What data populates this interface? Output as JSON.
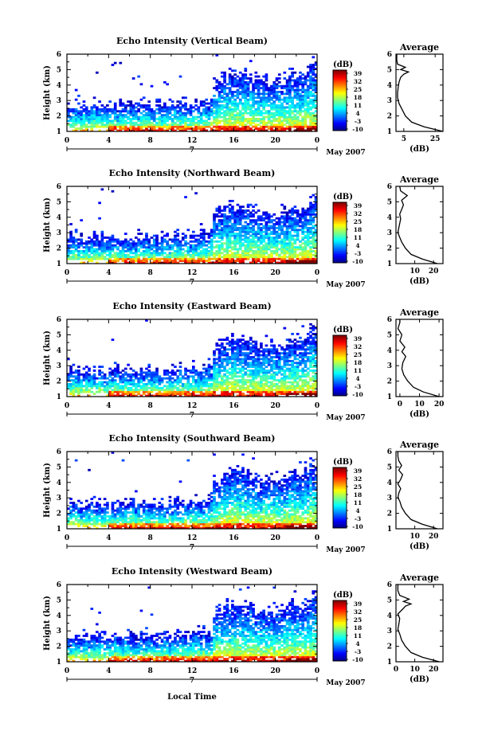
{
  "figure": {
    "month_label": "May 2007",
    "day_label": "7",
    "xlabel_bottom": "Local Time",
    "colorbar_unit": "(dB)",
    "colorbar_ticks": [
      "39",
      "32",
      "25",
      "18",
      "11",
      "4",
      "-3",
      "-10"
    ],
    "avg_title": "Average",
    "avg_xlabel": "(dB)"
  },
  "chart_data": [
    {
      "type": "heatmap",
      "title": "Echo Intensity (Vertical Beam)",
      "ylabel": "Height (km)",
      "x_ticks": [
        "0",
        "4",
        "8",
        "12",
        "16",
        "20",
        "0"
      ],
      "y_ticks": [
        "1",
        "2",
        "3",
        "4",
        "5",
        "6"
      ],
      "xlim": [
        0,
        24
      ],
      "ylim": [
        1,
        6
      ],
      "clim": [
        -10,
        39
      ],
      "seed": 11,
      "avg": {
        "title": "Average",
        "xlabel": "(dB)",
        "xlim": [
          0,
          30
        ],
        "x_ticks": [
          "5",
          "25"
        ],
        "profile": [
          [
            1.0,
            30
          ],
          [
            1.3,
            18
          ],
          [
            1.6,
            10
          ],
          [
            2.0,
            6
          ],
          [
            2.4,
            4
          ],
          [
            2.8,
            2
          ],
          [
            3.2,
            1
          ],
          [
            3.5,
            1
          ],
          [
            3.9,
            1.5
          ],
          [
            4.2,
            2
          ],
          [
            4.5,
            3
          ],
          [
            4.7,
            5
          ],
          [
            4.85,
            8
          ],
          [
            5.0,
            3
          ],
          [
            5.15,
            6
          ],
          [
            5.35,
            1
          ],
          [
            5.6,
            0.5
          ],
          [
            6.0,
            0.5
          ]
        ]
      }
    },
    {
      "type": "heatmap",
      "title": "Echo Intensity (Northward Beam)",
      "ylabel": "Height (km)",
      "x_ticks": [
        "0",
        "4",
        "8",
        "12",
        "16",
        "20",
        "0"
      ],
      "y_ticks": [
        "1",
        "2",
        "3",
        "4",
        "5",
        "6"
      ],
      "xlim": [
        0,
        24
      ],
      "ylim": [
        1,
        6
      ],
      "clim": [
        -10,
        39
      ],
      "seed": 23,
      "avg": {
        "title": "Average",
        "xlabel": "(dB)",
        "xlim": [
          0,
          25
        ],
        "x_ticks": [
          "10",
          "20"
        ],
        "profile": [
          [
            1.0,
            22
          ],
          [
            1.3,
            14
          ],
          [
            1.6,
            8
          ],
          [
            2.0,
            5
          ],
          [
            2.4,
            3
          ],
          [
            2.7,
            2
          ],
          [
            3.0,
            1
          ],
          [
            3.3,
            1.5
          ],
          [
            3.6,
            2
          ],
          [
            3.9,
            2.5
          ],
          [
            4.2,
            2
          ],
          [
            4.5,
            3
          ],
          [
            4.8,
            4
          ],
          [
            5.1,
            3
          ],
          [
            5.4,
            6
          ],
          [
            5.7,
            2.5
          ],
          [
            6.0,
            2
          ]
        ]
      }
    },
    {
      "type": "heatmap",
      "title": "Echo Intensity (Eastward Beam)",
      "ylabel": "Height (km)",
      "x_ticks": [
        "0",
        "4",
        "8",
        "12",
        "16",
        "20",
        "0"
      ],
      "y_ticks": [
        "1",
        "2",
        "3",
        "4",
        "5",
        "6"
      ],
      "xlim": [
        0,
        24
      ],
      "ylim": [
        1,
        6
      ],
      "clim": [
        -10,
        39
      ],
      "seed": 37,
      "avg": {
        "title": "Average",
        "xlabel": "(dB)",
        "xlim": [
          -2,
          22
        ],
        "x_ticks": [
          "0",
          "10",
          "20"
        ],
        "profile": [
          [
            1.0,
            20
          ],
          [
            1.3,
            12
          ],
          [
            1.6,
            7
          ],
          [
            2.0,
            4
          ],
          [
            2.4,
            2
          ],
          [
            2.8,
            1
          ],
          [
            3.2,
            1.5
          ],
          [
            3.6,
            3
          ],
          [
            3.9,
            1
          ],
          [
            4.2,
            2.5
          ],
          [
            4.6,
            0
          ],
          [
            5.0,
            1
          ],
          [
            5.4,
            -1
          ],
          [
            5.8,
            0
          ],
          [
            6.0,
            0
          ]
        ]
      }
    },
    {
      "type": "heatmap",
      "title": "Echo Intensity (Southward Beam)",
      "ylabel": "Height (km)",
      "x_ticks": [
        "0",
        "4",
        "8",
        "12",
        "16",
        "20",
        "0"
      ],
      "y_ticks": [
        "1",
        "2",
        "3",
        "4",
        "5",
        "6"
      ],
      "xlim": [
        0,
        24
      ],
      "ylim": [
        1,
        6
      ],
      "clim": [
        -10,
        39
      ],
      "seed": 53,
      "avg": {
        "title": "Average",
        "xlabel": "(dB)",
        "xlim": [
          0,
          25
        ],
        "x_ticks": [
          "10",
          "20"
        ],
        "profile": [
          [
            1.0,
            22
          ],
          [
            1.3,
            14
          ],
          [
            1.6,
            8
          ],
          [
            2.0,
            5
          ],
          [
            2.4,
            3
          ],
          [
            2.8,
            2
          ],
          [
            3.0,
            1
          ],
          [
            3.3,
            1.5
          ],
          [
            3.6,
            2.5
          ],
          [
            3.9,
            1
          ],
          [
            4.2,
            2.5
          ],
          [
            4.5,
            3.5
          ],
          [
            4.8,
            1.5
          ],
          [
            5.1,
            3
          ],
          [
            5.4,
            1.5
          ],
          [
            5.7,
            1
          ],
          [
            6.0,
            1
          ]
        ]
      }
    },
    {
      "type": "heatmap",
      "title": "Echo Intensity (Westward Beam)",
      "ylabel": "Height (km)",
      "x_ticks": [
        "0",
        "4",
        "8",
        "12",
        "16",
        "20",
        "0"
      ],
      "y_ticks": [
        "1",
        "2",
        "3",
        "4",
        "5",
        "6"
      ],
      "xlim": [
        0,
        24
      ],
      "ylim": [
        1,
        6
      ],
      "clim": [
        -10,
        39
      ],
      "seed": 71,
      "avg": {
        "title": "Average",
        "xlabel": "(dB)",
        "xlim": [
          0,
          25
        ],
        "x_ticks": [
          "0",
          "10",
          "20"
        ],
        "profile": [
          [
            1.0,
            23
          ],
          [
            1.3,
            14
          ],
          [
            1.6,
            8
          ],
          [
            2.0,
            5
          ],
          [
            2.4,
            3
          ],
          [
            2.8,
            2
          ],
          [
            3.1,
            1
          ],
          [
            3.4,
            1.5
          ],
          [
            3.8,
            2
          ],
          [
            4.1,
            1
          ],
          [
            4.4,
            3.5
          ],
          [
            4.6,
            5
          ],
          [
            4.75,
            8
          ],
          [
            4.9,
            4
          ],
          [
            5.05,
            7
          ],
          [
            5.3,
            2
          ],
          [
            5.6,
            1
          ],
          [
            6.0,
            1
          ]
        ]
      }
    }
  ]
}
